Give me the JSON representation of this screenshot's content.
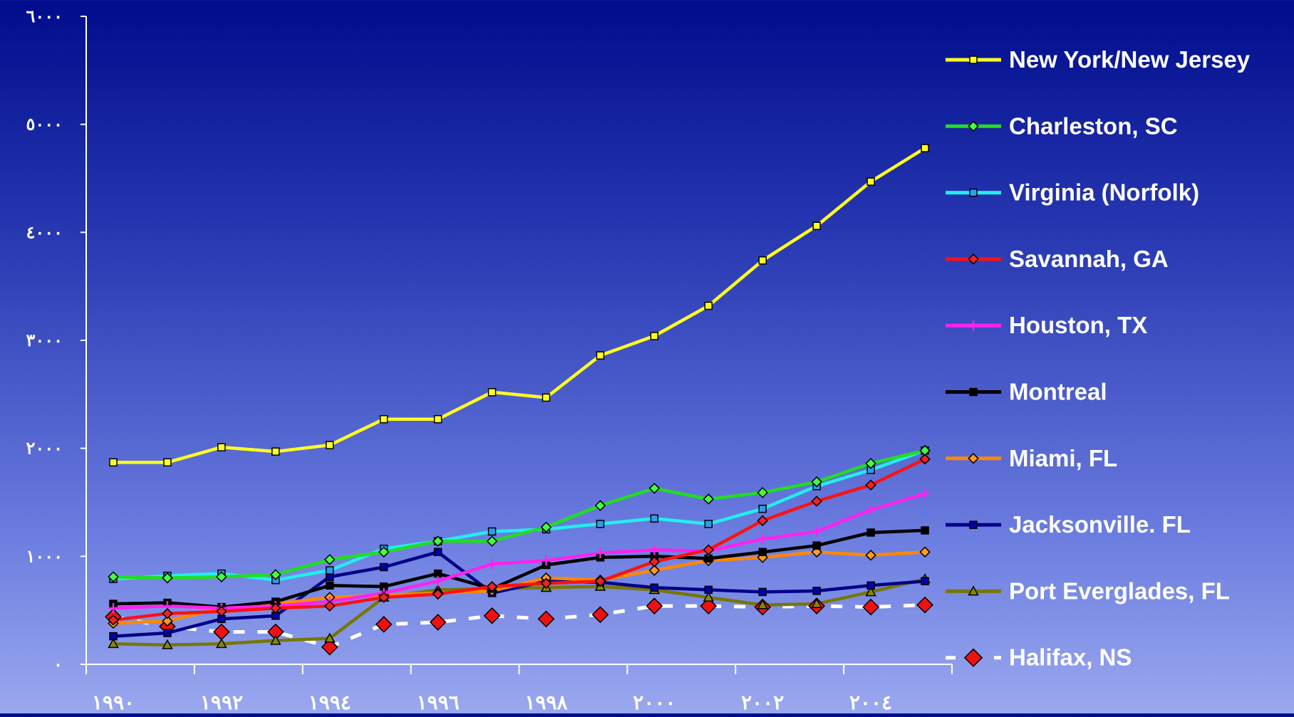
{
  "chart_data": {
    "type": "line",
    "title": "",
    "xlabel": "",
    "ylabel": "",
    "x": [
      1990,
      1991,
      1992,
      1993,
      1994,
      1995,
      1996,
      1997,
      1998,
      1999,
      2000,
      2001,
      2002,
      2003,
      2004,
      2005
    ],
    "x_tick_labels": [
      "١٩٩٠",
      "١٩٩٢",
      "١٩٩٤",
      "١٩٩٦",
      "١٩٩٨",
      "٢٠٠٠",
      "٢٠٠٢",
      "٢٠٠٤"
    ],
    "x_tick_values": [
      1990,
      1992,
      1994,
      1996,
      1998,
      2000,
      2002,
      2004
    ],
    "y_tick_labels": [
      "٠",
      "١٠٠٠",
      "٢٠٠٠",
      "٣٠٠٠",
      "٤٠٠٠",
      "٥٠٠٠",
      "٦٠٠٠"
    ],
    "y_tick_values": [
      0,
      1000,
      2000,
      3000,
      4000,
      5000,
      6000
    ],
    "ylim": [
      0,
      6000
    ],
    "grid": false,
    "legend_position": "right",
    "series": [
      {
        "name": "New York/New Jersey",
        "color": "#ffff22",
        "marker": "square",
        "marker_fill": "#ffff22",
        "dash": false,
        "values": [
          1870,
          1870,
          2010,
          1970,
          2030,
          2270,
          2270,
          2520,
          2470,
          2860,
          3040,
          3320,
          3740,
          4060,
          4470,
          4780
        ]
      },
      {
        "name": "Charleston, SC",
        "color": "#22dd22",
        "marker": "diamond",
        "marker_fill": "#44ff44",
        "dash": false,
        "values": [
          810,
          800,
          810,
          830,
          970,
          1040,
          1140,
          1140,
          1270,
          1470,
          1630,
          1530,
          1590,
          1690,
          1860,
          1980
        ]
      },
      {
        "name": "Virginia (Norfolk)",
        "color": "#22eeee",
        "marker": "square",
        "marker_fill": "#3399ee",
        "dash": false,
        "values": [
          790,
          820,
          840,
          780,
          870,
          1070,
          1140,
          1230,
          1250,
          1300,
          1350,
          1300,
          1440,
          1650,
          1800,
          1980
        ]
      },
      {
        "name": "Savannah, GA",
        "color": "#ff1111",
        "marker": "diamond",
        "marker_fill": "#ee2222",
        "dash": false,
        "values": [
          410,
          470,
          490,
          520,
          540,
          620,
          650,
          720,
          750,
          770,
          950,
          1060,
          1330,
          1510,
          1660,
          1900
        ]
      },
      {
        "name": "Houston, TX",
        "color": "#ff22ee",
        "marker": "plus",
        "marker_fill": "#ff22ee",
        "dash": false,
        "values": [
          520,
          540,
          520,
          540,
          580,
          660,
          770,
          930,
          960,
          1030,
          1060,
          1050,
          1160,
          1230,
          1430,
          1580
        ]
      },
      {
        "name": "Montreal",
        "color": "#000000",
        "marker": "square",
        "marker_fill": "#000000",
        "dash": false,
        "values": [
          560,
          570,
          530,
          580,
          730,
          720,
          840,
          700,
          920,
          990,
          1000,
          980,
          1040,
          1100,
          1220,
          1240
        ]
      },
      {
        "name": "Miami, FL",
        "color": "#ff8800",
        "marker": "diamond",
        "marker_fill": "#ff9922",
        "dash": false,
        "values": [
          380,
          400,
          520,
          560,
          620,
          640,
          660,
          680,
          800,
          780,
          870,
          960,
          990,
          1040,
          1010,
          1040
        ]
      },
      {
        "name": "Jacksonville. FL",
        "color": "#000088",
        "marker": "square",
        "marker_fill": "#0000aa",
        "dash": false,
        "values": [
          260,
          290,
          420,
          450,
          810,
          900,
          1040,
          660,
          770,
          760,
          710,
          690,
          670,
          680,
          730,
          770
        ]
      },
      {
        "name": "Port Everglades, FL",
        "color": "#777700",
        "marker": "triangle",
        "marker_fill": "#888800",
        "dash": false,
        "values": [
          190,
          180,
          190,
          220,
          240,
          620,
          690,
          700,
          710,
          720,
          690,
          620,
          550,
          560,
          670,
          790
        ]
      },
      {
        "name": "Halifax, NS",
        "color": "#ffffff",
        "marker": "diamond",
        "marker_fill": "#ee1111",
        "dash": true,
        "values": [
          440,
          350,
          300,
          300,
          160,
          370,
          390,
          450,
          420,
          460,
          540,
          540,
          530,
          540,
          530,
          550
        ]
      }
    ]
  }
}
